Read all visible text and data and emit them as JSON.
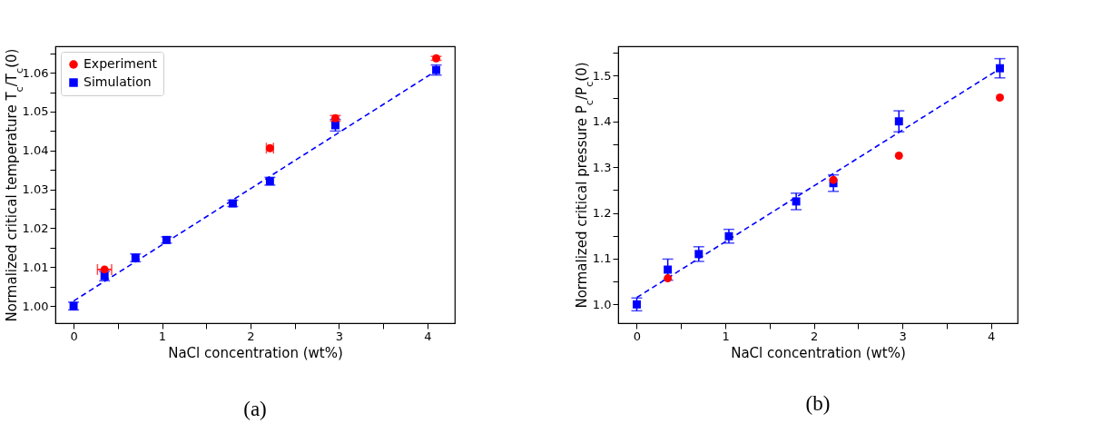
{
  "chart_data": [
    {
      "type": "scatter",
      "xlabel": "NaCl concentration (wt%)",
      "ylabel": "Normalized critical temperature T$_{c}$/T$_{c}$(0)",
      "annotations": [
        "(a)"
      ],
      "legend": "top left",
      "grid": false,
      "xlim": [
        -0.206,
        4.31
      ],
      "ylim": [
        0.9956,
        1.0668
      ],
      "xticks": [
        0,
        {
          "value": 0.5,
          "label": null
        },
        1,
        {
          "value": 1.5,
          "label": null
        },
        2,
        {
          "value": 2.5,
          "label": null
        },
        3,
        {
          "value": 3.5,
          "label": null
        },
        4
      ],
      "yticks": [
        {
          "value": 1.0,
          "label": "1.00"
        },
        {
          "value": 1.005,
          "label": null
        },
        1.01,
        {
          "value": 1.015,
          "label": null
        },
        1.02,
        {
          "value": 1.025,
          "label": null
        },
        1.03,
        {
          "value": 1.035,
          "label": null
        },
        1.04,
        {
          "value": 1.045,
          "label": null
        },
        1.05,
        {
          "value": 1.055,
          "label": null
        },
        1.06,
        {
          "value": 1.065,
          "label": null
        }
      ],
      "series": [
        {
          "name": "Experiment",
          "color": "#ff0000",
          "marker": "circle",
          "x": [
            0.35,
            2.22,
            2.96,
            4.1
          ],
          "values": [
            1.0094,
            1.0406,
            1.0483,
            1.0637
          ],
          "errors": [
            null,
            null,
            0.0007,
            0.0005
          ],
          "xerrors": [
            0.08,
            0.04,
            null,
            null
          ]
        },
        {
          "name": "Simulation",
          "color": "#0000ff",
          "marker": "square",
          "x": [
            0,
            0.35,
            0.7,
            1.05,
            1.8,
            2.22,
            2.96,
            4.1
          ],
          "values": [
            1.0,
            1.0077,
            1.0124,
            1.017,
            1.0264,
            1.0321,
            1.0465,
            1.0607
          ],
          "errors": [
            0.001,
            0.0012,
            0.001,
            0.0008,
            0.0008,
            0.001,
            0.0015,
            0.0013
          ]
        },
        {
          "type": "line",
          "color": "#0000ff",
          "line_style": "dashed",
          "x": [
            0,
            4.1
          ],
          "values": [
            1.0013,
            1.0605
          ]
        }
      ]
    },
    {
      "type": "scatter",
      "xlabel": "NaCl concentration (wt%)",
      "ylabel": "Normalized critical pressure P$_{c}$/P$_{c}$(0)",
      "annotations": [
        "(b)"
      ],
      "legend": "top left",
      "grid": false,
      "xlim": [
        -0.21,
        4.3
      ],
      "ylim": [
        0.959,
        1.564
      ],
      "xticks": [
        0,
        {
          "value": 0.5,
          "label": null
        },
        1,
        {
          "value": 1.5,
          "label": null
        },
        2,
        {
          "value": 2.5,
          "label": null
        },
        3,
        {
          "value": 3.5,
          "label": null
        },
        4
      ],
      "yticks": [
        {
          "value": 1.0,
          "label": "1.0"
        },
        {
          "value": 1.05,
          "label": null
        },
        1.1,
        {
          "value": 1.15,
          "label": null
        },
        1.2,
        {
          "value": 1.25,
          "label": null
        },
        1.3,
        {
          "value": 1.35,
          "label": null
        },
        1.4,
        {
          "value": 1.45,
          "label": null
        },
        1.5,
        {
          "value": 1.55,
          "label": null
        }
      ],
      "series": [
        {
          "name": "Experiment",
          "color": "#ff0000",
          "marker": "circle",
          "x": [
            0.35,
            2.22,
            2.96,
            4.1
          ],
          "values": [
            1.057,
            1.272,
            1.325,
            1.452
          ]
        },
        {
          "name": "Simulation",
          "color": "#0000ff",
          "marker": "square",
          "x": [
            0,
            0.35,
            0.7,
            1.04,
            1.8,
            2.22,
            2.96,
            4.1
          ],
          "values": [
            1.0,
            1.076,
            1.11,
            1.149,
            1.225,
            1.265,
            1.4,
            1.516
          ],
          "errors": [
            0.014,
            0.023,
            0.016,
            0.015,
            0.018,
            0.018,
            0.023,
            0.021
          ]
        },
        {
          "type": "line",
          "color": "#0000ff",
          "line_style": "dashed",
          "x": [
            0,
            4.1
          ],
          "values": [
            1.015,
            1.515
          ]
        }
      ]
    }
  ]
}
